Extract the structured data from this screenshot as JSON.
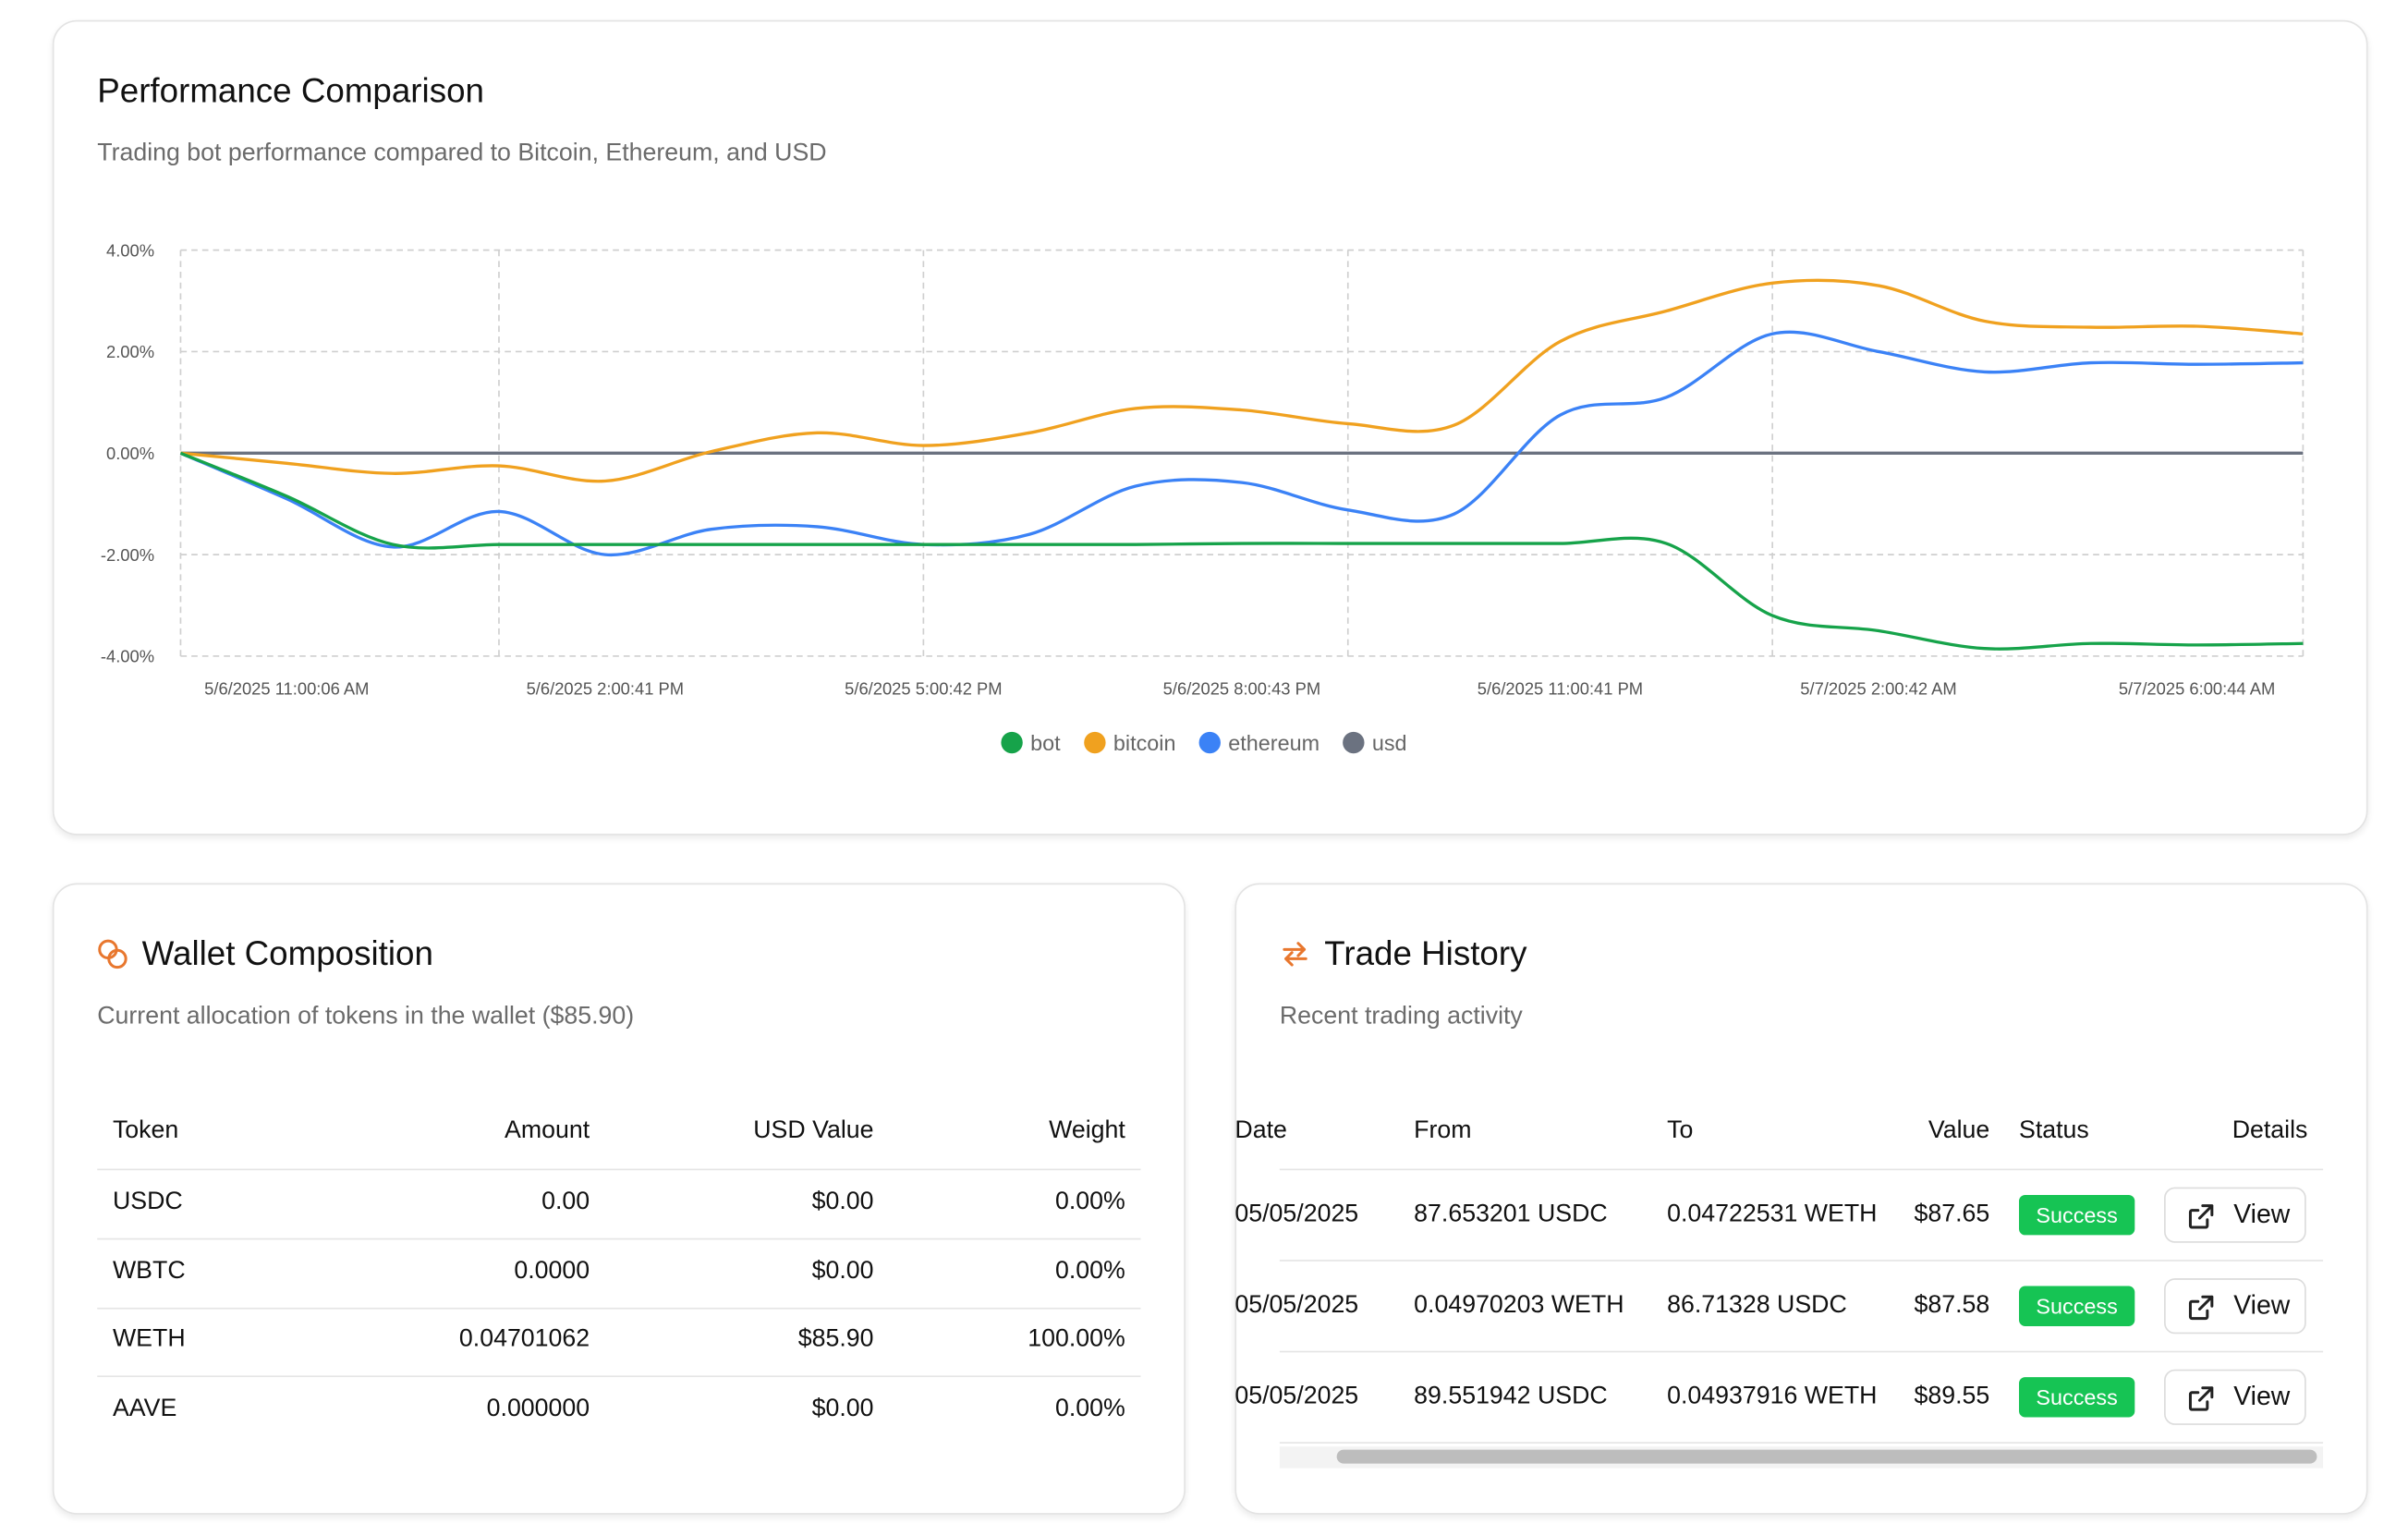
{
  "chart_data": {
    "type": "line",
    "title": "Performance Comparison",
    "subtitle": "Trading bot performance compared to Bitcoin, Ethereum, and USD",
    "categories": [
      null,
      "5/6/2025 11:00:06 AM",
      null,
      null,
      "5/6/2025 2:00:41 PM",
      null,
      null,
      "5/6/2025 5:00:42 PM",
      null,
      null,
      "5/6/2025 8:00:43 PM",
      null,
      null,
      "5/6/2025 11:00:41 PM",
      null,
      null,
      "5/7/2025 2:00:42 AM",
      null,
      null,
      "5/7/2025 6:00:44 AM",
      null
    ],
    "series": [
      {
        "name": "bot",
        "color": "#16a34a",
        "values": [
          0,
          -0.85,
          -1.8,
          -1.8,
          -1.8,
          -1.8,
          -1.8,
          -1.8,
          -1.8,
          -1.8,
          -1.78,
          -1.78,
          -1.78,
          -1.78,
          -1.78,
          -3.2,
          -3.5,
          -3.85,
          -3.75,
          -3.78,
          -3.75
        ]
      },
      {
        "name": "bitcoin",
        "color": "#f0a11f",
        "values": [
          0,
          -0.2,
          -0.4,
          -0.25,
          -0.55,
          0.03,
          0.4,
          0.15,
          0.4,
          0.88,
          0.85,
          0.58,
          0.55,
          2.2,
          2.8,
          3.35,
          3.3,
          2.6,
          2.48,
          2.5,
          2.35
        ]
      },
      {
        "name": "ethereum",
        "color": "#3b82f6",
        "values": [
          0,
          -0.9,
          -1.85,
          -1.15,
          -2.0,
          -1.5,
          -1.45,
          -1.8,
          -1.6,
          -0.65,
          -0.58,
          -1.12,
          -1.2,
          0.75,
          1.1,
          2.35,
          2.0,
          1.6,
          1.78,
          1.75,
          1.78
        ]
      },
      {
        "name": "usd",
        "color": "#6b7280",
        "values": [
          0,
          0,
          0,
          0,
          0,
          0,
          0,
          0,
          0,
          0,
          0,
          0,
          0,
          0,
          0,
          0,
          0,
          0,
          0,
          0,
          0
        ]
      }
    ],
    "ylim": [
      -4,
      4
    ],
    "yticks": [
      {
        "value": -4,
        "label": "-4.00%"
      },
      {
        "value": -2,
        "label": "-2.00%"
      },
      {
        "value": 0,
        "label": "0.00%"
      },
      {
        "value": 2,
        "label": "2.00%"
      },
      {
        "value": 4,
        "label": "4.00%"
      }
    ],
    "grid": true,
    "legend": "bottom"
  },
  "wallet": {
    "title": "Wallet Composition",
    "subtitle": "Current allocation of tokens in the wallet ($85.90)",
    "table": {
      "header": [
        "Token",
        "Amount",
        "USD Value",
        "Weight"
      ],
      "rows": [
        [
          "USDC",
          "0.00",
          "$0.00",
          "0.00%"
        ],
        [
          "WBTC",
          "0.0000",
          "$0.00",
          "0.00%"
        ],
        [
          "WETH",
          "0.04701062",
          "$85.90",
          "100.00%"
        ],
        [
          "AAVE",
          "0.000000",
          "$0.00",
          "0.00%"
        ]
      ]
    }
  },
  "trades": {
    "title": "Trade History",
    "subtitle": "Recent trading activity",
    "table": {
      "header": [
        "Date",
        "From",
        "To",
        "Value",
        "Status",
        "Details"
      ],
      "rows": [
        [
          "05/05/2025",
          "87.653201 USDC",
          "0.04722531 WETH",
          "$87.65",
          "Success",
          "View"
        ],
        [
          "05/05/2025",
          "0.04970203 WETH",
          "86.71328 USDC",
          "$87.58",
          "Success",
          "View"
        ],
        [
          "05/05/2025",
          "89.551942 USDC",
          "0.04937916 WETH",
          "$89.55",
          "Success",
          "View"
        ]
      ]
    }
  }
}
